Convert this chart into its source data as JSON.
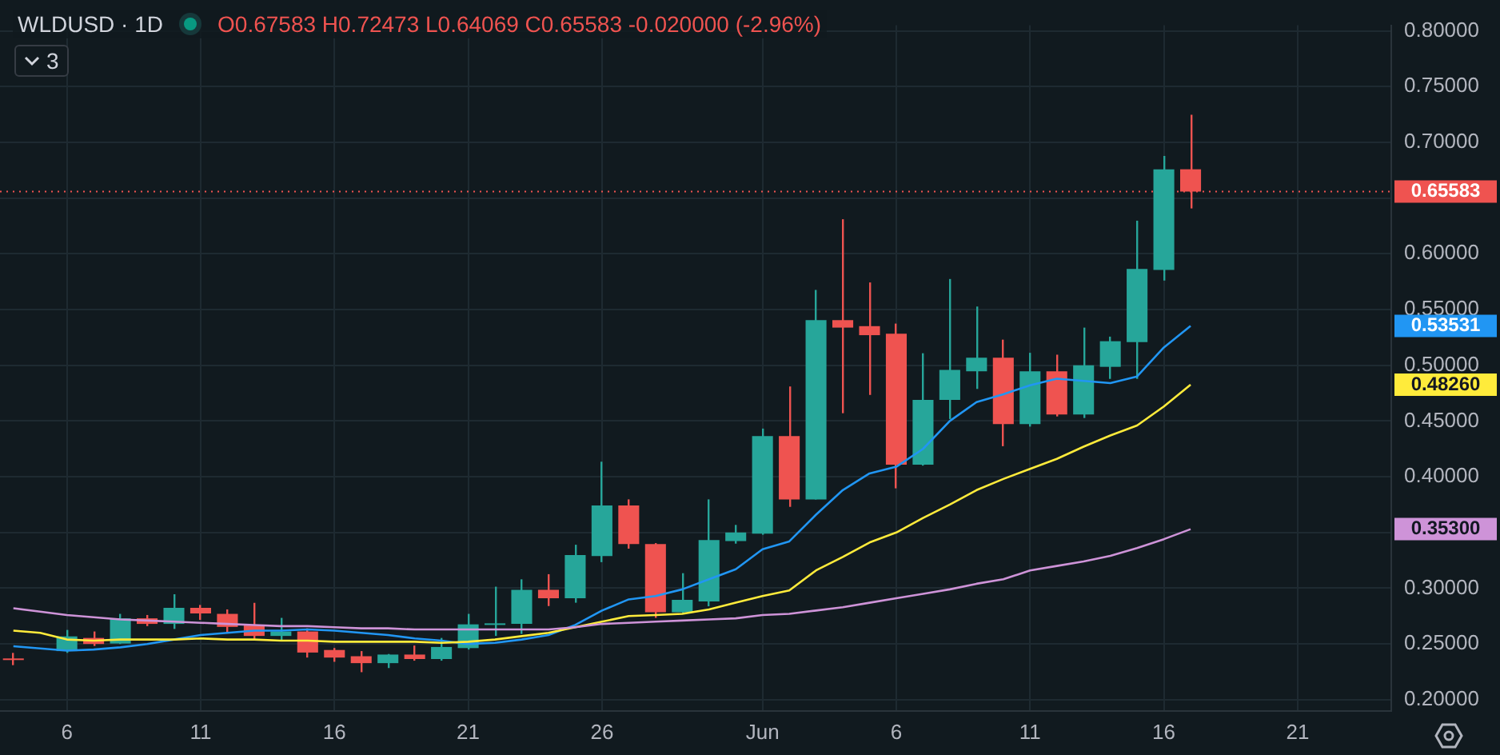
{
  "chart_data": {
    "type": "candlestick",
    "title": "WLDUSD · 1D",
    "annotations": [
      "O0.67583 H0.72473 L0.64069 C0.65583 -0.020000 (-2.96%)",
      "3",
      "0.35300",
      "0.48260",
      "0.53531"
    ],
    "categories": [
      null,
      null,
      "6",
      null,
      null,
      null,
      null,
      "11",
      null,
      null,
      null,
      null,
      "16",
      null,
      null,
      null,
      null,
      "21",
      null,
      null,
      null,
      null,
      "26",
      null,
      null,
      null,
      null,
      null,
      "Jun",
      null,
      null,
      null,
      null,
      "6",
      null,
      null,
      null,
      null,
      "11",
      null,
      null,
      null,
      null,
      "16",
      null,
      null,
      null,
      null,
      "21",
      null,
      null,
      null
    ],
    "ohlc": [
      [
        0.237,
        0.242,
        0.231,
        0.236
      ],
      null,
      [
        0.2436,
        0.2626,
        0.242,
        0.2568
      ],
      [
        0.2554,
        0.2612,
        0.2482,
        0.25
      ],
      [
        0.2504,
        0.277,
        0.25,
        0.273
      ],
      [
        0.273,
        0.276,
        0.266,
        0.268
      ],
      [
        0.268,
        0.2946,
        0.2635,
        0.2824
      ],
      [
        0.2824,
        0.285,
        0.2716,
        0.2774
      ],
      [
        0.277,
        0.281,
        0.26,
        0.2653
      ],
      [
        0.2666,
        0.2869,
        0.2545,
        0.2572
      ],
      [
        0.2572,
        0.2734,
        0.2531,
        0.2612
      ],
      [
        0.2612,
        0.264,
        0.2378,
        0.2423
      ],
      [
        0.2446,
        0.2464,
        0.234,
        0.2378
      ],
      [
        0.239,
        0.2436,
        0.2247,
        0.2328
      ],
      [
        0.2328,
        0.241,
        0.2284,
        0.2405
      ],
      [
        0.2405,
        0.2486,
        0.235,
        0.2365
      ],
      [
        0.2365,
        0.2554,
        0.235,
        0.2473
      ],
      [
        0.2463,
        0.277,
        0.245,
        0.2676
      ],
      [
        0.2676,
        0.3014,
        0.2572,
        0.2685
      ],
      [
        0.268,
        0.308,
        0.259,
        0.2986
      ],
      [
        0.2986,
        0.3126,
        0.284,
        0.291
      ],
      [
        0.291,
        0.339,
        0.287,
        0.3297
      ],
      [
        0.3288,
        0.4135,
        0.3234,
        0.3743
      ],
      [
        0.3743,
        0.3797,
        0.3355,
        0.3396
      ],
      [
        0.3396,
        0.3405,
        0.2734,
        0.2784
      ],
      [
        0.2784,
        0.3135,
        0.278,
        0.2896
      ],
      [
        0.2882,
        0.3797,
        0.2838,
        0.3432
      ],
      [
        0.3423,
        0.3568,
        0.34,
        0.35
      ],
      [
        0.349,
        0.4432,
        0.348,
        0.4365
      ],
      [
        0.4365,
        0.481,
        0.373,
        0.3797
      ],
      [
        0.3797,
        0.5676,
        0.3797,
        0.5405
      ],
      [
        0.5405,
        0.631,
        0.457,
        0.5338
      ],
      [
        0.5351,
        0.5743,
        0.4734,
        0.527
      ],
      [
        0.5284,
        0.5374,
        0.3896,
        0.4108
      ],
      [
        0.4108,
        0.5108,
        0.41,
        0.4689
      ],
      [
        0.4689,
        0.5774,
        0.4518,
        0.4959
      ],
      [
        0.4946,
        0.5527,
        0.4788,
        0.5068
      ],
      [
        0.5068,
        0.523,
        0.4274,
        0.4473
      ],
      [
        0.4473,
        0.5112,
        0.445,
        0.4946
      ],
      [
        0.4946,
        0.5095,
        0.4541,
        0.4558
      ],
      [
        0.4558,
        0.5338,
        0.4527,
        0.5
      ],
      [
        0.4986,
        0.5257,
        0.4878,
        0.5216
      ],
      [
        0.5207,
        0.6297,
        0.4878,
        0.5865
      ],
      [
        0.5855,
        0.6878,
        0.576,
        0.67583
      ],
      [
        0.67583,
        0.72473,
        0.64069,
        0.65583
      ],
      null,
      null,
      null,
      null,
      null,
      null,
      null
    ],
    "colors": [
      "#ef5350",
      null,
      "#26a69a",
      "#ef5350",
      "#26a69a",
      "#ef5350",
      "#26a69a",
      "#ef5350",
      "#ef5350",
      "#ef5350",
      "#26a69a",
      "#ef5350",
      "#ef5350",
      "#ef5350",
      "#26a69a",
      "#ef5350",
      "#26a69a",
      "#26a69a",
      "#26a69a",
      "#26a69a",
      "#ef5350",
      "#26a69a",
      "#26a69a",
      "#ef5350",
      "#ef5350",
      "#26a69a",
      "#26a69a",
      "#26a69a",
      "#26a69a",
      "#ef5350",
      "#26a69a",
      "#ef5350",
      "#ef5350",
      "#ef5350",
      "#26a69a",
      "#26a69a",
      "#26a69a",
      "#ef5350",
      "#26a69a",
      "#ef5350",
      "#26a69a",
      "#26a69a",
      "#26a69a",
      "#26a69a",
      "#ef5350",
      null,
      null,
      null,
      null,
      null,
      null,
      null
    ],
    "series": [
      {
        "type": "line",
        "color": "#ce93d8",
        "values": [
          0.282,
          0.279,
          0.276,
          0.274,
          0.272,
          0.271,
          0.27,
          0.269,
          0.268,
          0.267,
          0.266,
          0.266,
          0.265,
          0.264,
          0.264,
          0.263,
          0.263,
          0.263,
          0.263,
          0.263,
          0.263,
          0.265,
          0.268,
          0.269,
          0.27,
          0.271,
          0.272,
          0.273,
          0.276,
          0.277,
          0.28,
          0.283,
          0.287,
          0.291,
          0.295,
          0.299,
          0.304,
          0.308,
          0.316,
          0.32,
          0.324,
          0.329,
          0.336,
          0.344,
          0.353,
          null,
          null,
          null,
          null,
          null,
          null,
          null
        ]
      },
      {
        "type": "line",
        "color": "#ffeb3b",
        "values": [
          0.262,
          0.26,
          0.254,
          0.253,
          0.254,
          0.254,
          0.254,
          0.255,
          0.254,
          0.254,
          0.253,
          0.253,
          0.252,
          0.252,
          0.252,
          0.252,
          0.251,
          0.252,
          0.254,
          0.257,
          0.26,
          0.265,
          0.27,
          0.275,
          0.276,
          0.277,
          0.281,
          0.287,
          0.293,
          0.298,
          0.316,
          0.328,
          0.341,
          0.35,
          0.363,
          0.375,
          0.388,
          0.398,
          0.407,
          0.416,
          0.427,
          0.437,
          0.446,
          0.463,
          0.4826,
          null,
          null,
          null,
          null,
          null,
          null,
          null
        ]
      },
      {
        "type": "line",
        "color": "#2196f3",
        "values": [
          0.248,
          0.246,
          0.244,
          0.245,
          0.247,
          0.25,
          0.254,
          0.258,
          0.26,
          0.262,
          0.262,
          0.263,
          0.262,
          0.26,
          0.258,
          0.255,
          0.253,
          0.25,
          0.251,
          0.254,
          0.258,
          0.267,
          0.28,
          0.29,
          0.293,
          0.299,
          0.308,
          0.317,
          0.335,
          0.342,
          0.366,
          0.388,
          0.403,
          0.409,
          0.425,
          0.45,
          0.467,
          0.474,
          0.482,
          0.488,
          0.486,
          0.484,
          0.49,
          0.516,
          0.53531,
          null,
          null,
          null,
          null,
          null,
          null,
          null
        ]
      }
    ],
    "ylim": [
      0.19,
      0.805
    ],
    "yticks": [
      {
        "value": 0.2,
        "label": "0.20000"
      },
      {
        "value": 0.25,
        "label": "0.25000"
      },
      {
        "value": 0.3,
        "label": "0.30000"
      },
      {
        "value": 0.35,
        "label": null
      },
      {
        "value": 0.4,
        "label": "0.40000"
      },
      {
        "value": 0.45,
        "label": "0.45000"
      },
      {
        "value": 0.5,
        "label": "0.50000"
      },
      {
        "value": 0.55,
        "label": "0.55000"
      },
      {
        "value": 0.6,
        "label": "0.60000"
      },
      {
        "value": 0.65,
        "label": null
      },
      {
        "value": 0.7,
        "label": "0.70000"
      },
      {
        "value": 0.75,
        "label": "0.75000"
      },
      {
        "value": 0.8,
        "label": "0.80000"
      }
    ],
    "ref_lines": [
      {
        "axis": "y",
        "value": 0.65583,
        "label": "0.65583",
        "color": "#ef5350",
        "line_style": "dotted"
      }
    ],
    "grid": true,
    "legend": false,
    "marker": "none"
  }
}
